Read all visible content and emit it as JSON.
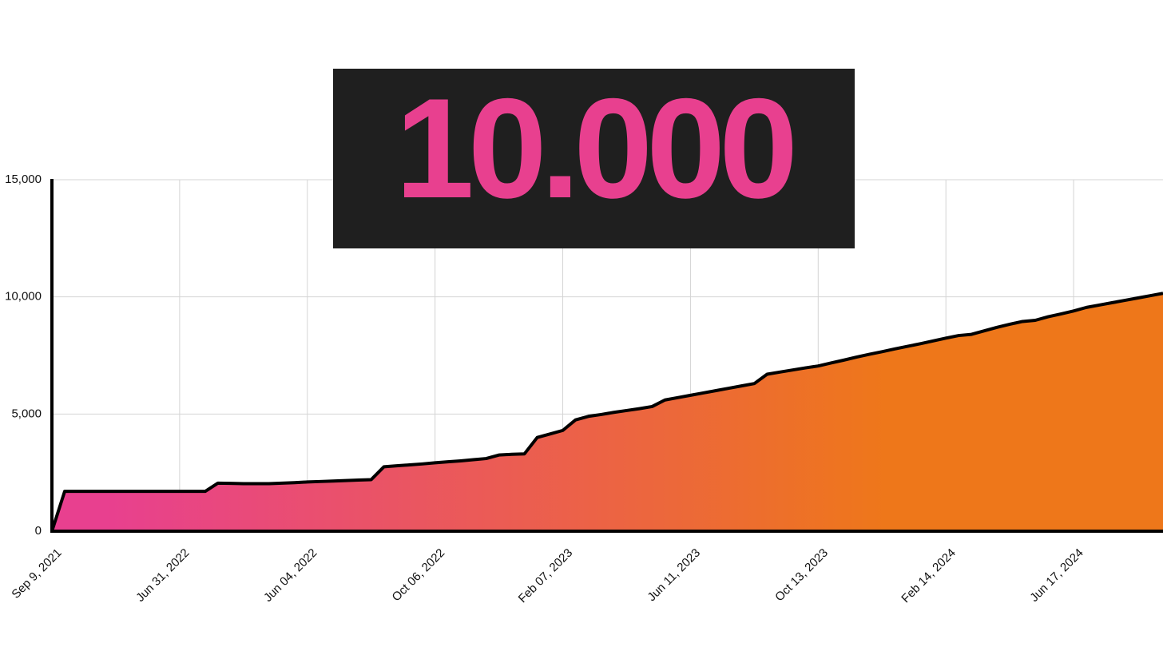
{
  "highlight": "10.000",
  "chart_data": {
    "type": "area",
    "categories": [
      "Sep 9, 2021",
      null,
      null,
      null,
      null,
      null,
      null,
      null,
      null,
      null,
      "Jun 31, 2022",
      null,
      null,
      null,
      null,
      null,
      null,
      null,
      null,
      null,
      "Jun 04, 2022",
      null,
      null,
      null,
      null,
      null,
      null,
      null,
      null,
      null,
      "Oct 06, 2022",
      null,
      null,
      null,
      null,
      null,
      null,
      null,
      null,
      null,
      "Feb 07, 2023",
      null,
      null,
      null,
      null,
      null,
      null,
      null,
      null,
      null,
      "Jun 11, 2023",
      null,
      null,
      null,
      null,
      null,
      null,
      null,
      null,
      null,
      "Oct 13, 2023",
      null,
      null,
      null,
      null,
      null,
      null,
      null,
      null,
      null,
      "Feb 14, 2024",
      null,
      null,
      null,
      null,
      null,
      null,
      null,
      null,
      null,
      "Jun 17, 2024",
      null,
      null,
      null,
      null,
      null,
      null,
      null
    ],
    "values": [
      0,
      1700,
      1700,
      1700,
      1700,
      1700,
      1700,
      1700,
      1700,
      1700,
      1700,
      1700,
      1700,
      2050,
      2040,
      2030,
      2030,
      2030,
      2050,
      2070,
      2100,
      2120,
      2140,
      2160,
      2180,
      2200,
      2750,
      2790,
      2830,
      2870,
      2920,
      2960,
      3000,
      3050,
      3100,
      3250,
      3280,
      3300,
      4000,
      4150,
      4300,
      4750,
      4900,
      4980,
      5070,
      5150,
      5230,
      5320,
      5600,
      5700,
      5800,
      5900,
      6000,
      6100,
      6200,
      6300,
      6700,
      6790,
      6880,
      6970,
      7050,
      7180,
      7300,
      7430,
      7550,
      7660,
      7780,
      7890,
      8000,
      8120,
      8240,
      8350,
      8400,
      8550,
      8700,
      8830,
      8950,
      9000,
      9150,
      9270,
      9400,
      9550,
      9650,
      9750,
      9850,
      9950,
      10050,
      10150
    ],
    "colors": [
      "#e8408f",
      "#ee771a"
    ],
    "ylim": [
      0,
      15000
    ],
    "yticks": [
      0,
      {
        "value": 5000,
        "label": "5,000"
      },
      {
        "value": 10000,
        "label": "10,000"
      },
      {
        "value": 15000,
        "label": "15,000"
      }
    ],
    "grid": true
  }
}
